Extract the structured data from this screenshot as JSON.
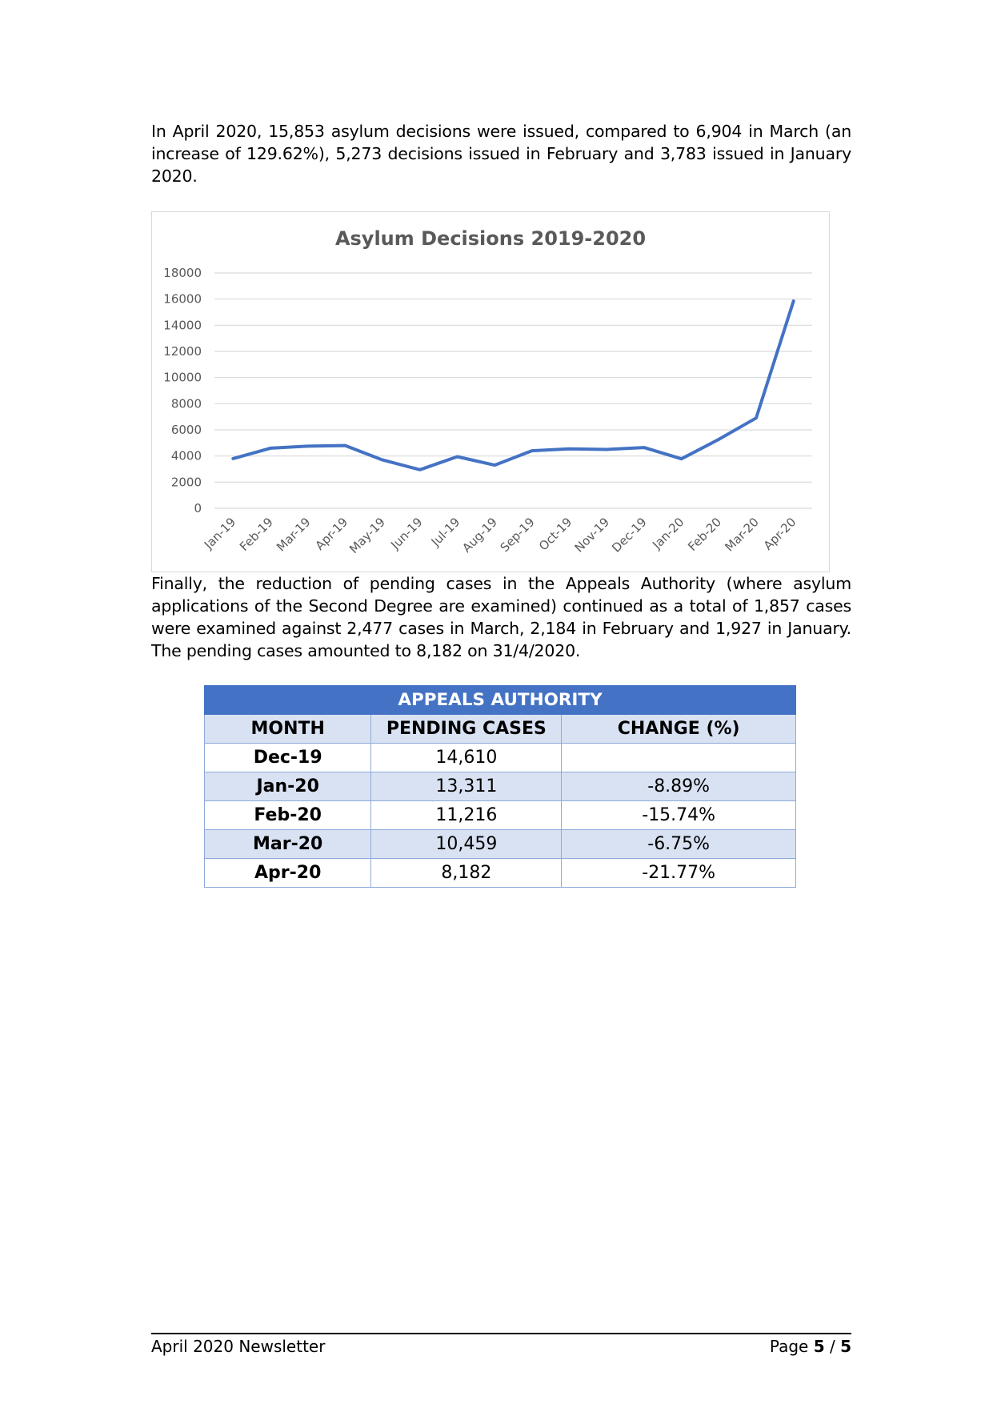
{
  "paragraphs": {
    "intro": "In April 2020, 15,853 asylum decisions were issued, compared to 6,904 in March (an increase of 129.62%), 5,273 decisions issued in February and 3,783 issued in January 2020.",
    "appeals": "Finally, the reduction of pending cases in the Appeals Authority (where asylum applications of the Second Degree are examined) continued as a total of 1,857 cases were examined against 2,477 cases in March, 2,184 in February and 1,927 in January. The pending cases amounted to 8,182 on 31/4/2020."
  },
  "chart_data": {
    "type": "line",
    "title": "Asylum Decisions 2019-2020",
    "categories": [
      "Jan-19",
      "Feb-19",
      "Mar-19",
      "Apr-19",
      "May-19",
      "Jun-19",
      "Jul-19",
      "Aug-19",
      "Sep-19",
      "Oct-19",
      "Nov-19",
      "Dec-19",
      "Jan-20",
      "Feb-20",
      "Mar-20",
      "Apr-20"
    ],
    "series": [
      {
        "values": [
          3800,
          4600,
          4750,
          4800,
          3700,
          2950,
          3950,
          3300,
          4400,
          4550,
          4500,
          4650,
          3783,
          5273,
          6904,
          15853
        ],
        "color": "#4472c4"
      }
    ],
    "yticks": [
      0,
      2000,
      4000,
      6000,
      8000,
      10000,
      12000,
      14000,
      16000,
      18000
    ],
    "ylim": [
      0,
      18000
    ],
    "grid": true,
    "legend": "none"
  },
  "table": {
    "title": "APPEALS AUTHORITY",
    "headers": [
      "MONTH",
      "PENDING CASES",
      "CHANGE (%)"
    ],
    "rows": [
      {
        "month": "Dec-19",
        "pending": "14,610",
        "change": ""
      },
      {
        "month": "Jan-20",
        "pending": "13,311",
        "change": "-8.89%"
      },
      {
        "month": "Feb-20",
        "pending": "11,216",
        "change": "-15.74%"
      },
      {
        "month": "Mar-20",
        "pending": "10,459",
        "change": "-6.75%"
      },
      {
        "month": "Apr-20",
        "pending": "8,182",
        "change": "-21.77%"
      }
    ]
  },
  "footer": {
    "left": "April 2020 Newsletter",
    "page_prefix": "Page ",
    "page_current": "5",
    "page_sep": " / ",
    "page_total": "5"
  }
}
